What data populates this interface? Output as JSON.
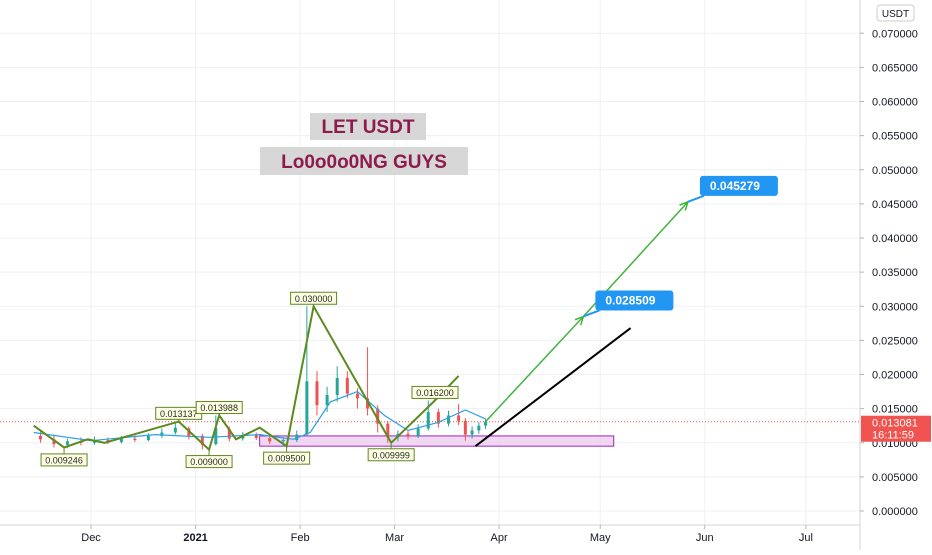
{
  "axis": {
    "symbol": "USDT",
    "y_ticks": [
      "0.070000",
      "0.065000",
      "0.060000",
      "0.055000",
      "0.050000",
      "0.045000",
      "0.040000",
      "0.035000",
      "0.030000",
      "0.025000",
      "0.020000",
      "0.015000",
      "0.010000",
      "0.005000",
      "0.000000"
    ],
    "x_ticks": [
      "Dec",
      "2021",
      "Feb",
      "Mar",
      "Apr",
      "May",
      "Jun",
      "Jul"
    ]
  },
  "price_tag": {
    "price": "0.013081",
    "countdown": "16:11:59"
  },
  "title": {
    "line1": "LET USDT",
    "line2": "Lo0o0o0NG GUYS"
  },
  "targets": [
    "0.028509",
    "0.045279"
  ],
  "colors": {
    "up": "#26a69a",
    "down": "#ef5350",
    "zigzag": "#5b8a1e",
    "ma": "#2aa0e6",
    "arrow": "#3fb53a",
    "target_bg": "#2196f3",
    "zone_fill": "#eec9f0",
    "zone_stroke": "#9c27b0",
    "price_tag": "#f05350",
    "title_text": "#8e1b4e",
    "title_bg": "#d7d7d7"
  },
  "chart_data": {
    "type": "candlestick",
    "ylim": [
      -0.0025,
      0.0735
    ],
    "x_range": [
      "2020-11-14",
      "2021-07-10"
    ],
    "pivots": [
      {
        "label": "0.009246",
        "x": "2020-11-23",
        "y": 0.009246
      },
      {
        "label": "0.013137",
        "x": "2020-12-27",
        "y": 0.013137
      },
      {
        "label": "0.009000",
        "x": "2021-01-05",
        "y": 0.009
      },
      {
        "label": "0.013988",
        "x": "2021-01-08",
        "y": 0.013988
      },
      {
        "label": "0.009500",
        "x": "2021-01-28",
        "y": 0.0095
      },
      {
        "label": "0.030000",
        "x": "2021-02-05",
        "y": 0.03
      },
      {
        "label": "0.009999",
        "x": "2021-02-28",
        "y": 0.009999
      },
      {
        "label": "0.016200",
        "x": "2021-03-13",
        "y": 0.0162
      }
    ],
    "zigzag": [
      {
        "x": "2020-11-14",
        "y": 0.0125
      },
      {
        "x": "2020-11-23",
        "y": 0.0093
      },
      {
        "x": "2020-11-30",
        "y": 0.0105
      },
      {
        "x": "2020-12-05",
        "y": 0.01
      },
      {
        "x": "2020-12-27",
        "y": 0.0131
      },
      {
        "x": "2021-01-05",
        "y": 0.009
      },
      {
        "x": "2021-01-08",
        "y": 0.014
      },
      {
        "x": "2021-01-13",
        "y": 0.0105
      },
      {
        "x": "2021-01-20",
        "y": 0.0122
      },
      {
        "x": "2021-01-28",
        "y": 0.0095
      },
      {
        "x": "2021-02-05",
        "y": 0.03
      },
      {
        "x": "2021-02-28",
        "y": 0.01
      },
      {
        "x": "2021-03-13",
        "y": 0.0162
      },
      {
        "x": "2021-03-20",
        "y": 0.0198
      }
    ],
    "ma": [
      {
        "x": "2020-11-14",
        "y": 0.0115
      },
      {
        "x": "2020-12-01",
        "y": 0.0103
      },
      {
        "x": "2020-12-20",
        "y": 0.0112
      },
      {
        "x": "2021-01-05",
        "y": 0.0108
      },
      {
        "x": "2021-01-20",
        "y": 0.0112
      },
      {
        "x": "2021-01-30",
        "y": 0.0105
      },
      {
        "x": "2021-02-04",
        "y": 0.0115
      },
      {
        "x": "2021-02-10",
        "y": 0.016
      },
      {
        "x": "2021-02-18",
        "y": 0.0175
      },
      {
        "x": "2021-02-26",
        "y": 0.014
      },
      {
        "x": "2021-03-05",
        "y": 0.0118
      },
      {
        "x": "2021-03-14",
        "y": 0.013
      },
      {
        "x": "2021-03-22",
        "y": 0.0148
      },
      {
        "x": "2021-03-28",
        "y": 0.0135
      }
    ],
    "candles": [
      {
        "x": "2020-11-16",
        "o": 0.011,
        "c": 0.0105,
        "h": 0.0118,
        "l": 0.01
      },
      {
        "x": "2020-11-20",
        "o": 0.0105,
        "c": 0.0098,
        "h": 0.0112,
        "l": 0.0093
      },
      {
        "x": "2020-11-24",
        "o": 0.0097,
        "c": 0.0102,
        "h": 0.0106,
        "l": 0.0092
      },
      {
        "x": "2020-11-28",
        "o": 0.0102,
        "c": 0.01,
        "h": 0.0108,
        "l": 0.0096
      },
      {
        "x": "2020-12-02",
        "o": 0.01,
        "c": 0.0104,
        "h": 0.0109,
        "l": 0.0097
      },
      {
        "x": "2020-12-06",
        "o": 0.0104,
        "c": 0.0101,
        "h": 0.0108,
        "l": 0.0098
      },
      {
        "x": "2020-12-10",
        "o": 0.0101,
        "c": 0.0106,
        "h": 0.011,
        "l": 0.0099
      },
      {
        "x": "2020-12-14",
        "o": 0.0106,
        "c": 0.0104,
        "h": 0.0111,
        "l": 0.0101
      },
      {
        "x": "2020-12-18",
        "o": 0.0104,
        "c": 0.011,
        "h": 0.0114,
        "l": 0.0102
      },
      {
        "x": "2020-12-22",
        "o": 0.011,
        "c": 0.0115,
        "h": 0.0121,
        "l": 0.0107
      },
      {
        "x": "2020-12-26",
        "o": 0.0115,
        "c": 0.0122,
        "h": 0.0131,
        "l": 0.0112
      },
      {
        "x": "2020-12-30",
        "o": 0.0121,
        "c": 0.011,
        "h": 0.0124,
        "l": 0.0105
      },
      {
        "x": "2021-01-03",
        "o": 0.011,
        "c": 0.0097,
        "h": 0.0113,
        "l": 0.009
      },
      {
        "x": "2021-01-07",
        "o": 0.0098,
        "c": 0.0122,
        "h": 0.014,
        "l": 0.0096
      },
      {
        "x": "2021-01-11",
        "o": 0.012,
        "c": 0.0106,
        "h": 0.0124,
        "l": 0.0102
      },
      {
        "x": "2021-01-15",
        "o": 0.0106,
        "c": 0.0111,
        "h": 0.0116,
        "l": 0.0103
      },
      {
        "x": "2021-01-19",
        "o": 0.0111,
        "c": 0.0107,
        "h": 0.0115,
        "l": 0.0104
      },
      {
        "x": "2021-01-23",
        "o": 0.0107,
        "c": 0.0102,
        "h": 0.0111,
        "l": 0.0098
      },
      {
        "x": "2021-01-27",
        "o": 0.0102,
        "c": 0.0104,
        "h": 0.0108,
        "l": 0.0095
      },
      {
        "x": "2021-01-31",
        "o": 0.0104,
        "c": 0.0112,
        "h": 0.0118,
        "l": 0.0101
      },
      {
        "x": "2021-02-03",
        "o": 0.0112,
        "c": 0.019,
        "h": 0.03,
        "l": 0.011
      },
      {
        "x": "2021-02-06",
        "o": 0.019,
        "c": 0.0155,
        "h": 0.0205,
        "l": 0.014
      },
      {
        "x": "2021-02-09",
        "o": 0.0155,
        "c": 0.017,
        "h": 0.0182,
        "l": 0.0145
      },
      {
        "x": "2021-02-12",
        "o": 0.017,
        "c": 0.0195,
        "h": 0.0212,
        "l": 0.016
      },
      {
        "x": "2021-02-15",
        "o": 0.0195,
        "c": 0.0172,
        "h": 0.0205,
        "l": 0.0165
      },
      {
        "x": "2021-02-18",
        "o": 0.0172,
        "c": 0.0165,
        "h": 0.018,
        "l": 0.015
      },
      {
        "x": "2021-02-21",
        "o": 0.0165,
        "c": 0.015,
        "h": 0.024,
        "l": 0.014
      },
      {
        "x": "2021-02-24",
        "o": 0.015,
        "c": 0.0128,
        "h": 0.0155,
        "l": 0.0115
      },
      {
        "x": "2021-02-27",
        "o": 0.0128,
        "c": 0.0108,
        "h": 0.0132,
        "l": 0.01
      },
      {
        "x": "2021-03-02",
        "o": 0.0108,
        "c": 0.0113,
        "h": 0.0118,
        "l": 0.0102
      },
      {
        "x": "2021-03-05",
        "o": 0.0113,
        "c": 0.011,
        "h": 0.0117,
        "l": 0.0105
      },
      {
        "x": "2021-03-08",
        "o": 0.011,
        "c": 0.0121,
        "h": 0.0127,
        "l": 0.0107
      },
      {
        "x": "2021-03-11",
        "o": 0.0121,
        "c": 0.0145,
        "h": 0.0162,
        "l": 0.0118
      },
      {
        "x": "2021-03-14",
        "o": 0.0145,
        "c": 0.0128,
        "h": 0.015,
        "l": 0.0122
      },
      {
        "x": "2021-03-17",
        "o": 0.0128,
        "c": 0.014,
        "h": 0.0147,
        "l": 0.0124
      },
      {
        "x": "2021-03-20",
        "o": 0.014,
        "c": 0.0132,
        "h": 0.0157,
        "l": 0.0126
      },
      {
        "x": "2021-03-22",
        "o": 0.0132,
        "c": 0.0112,
        "h": 0.0136,
        "l": 0.0103
      },
      {
        "x": "2021-03-24",
        "o": 0.0112,
        "c": 0.0118,
        "h": 0.0124,
        "l": 0.0106
      },
      {
        "x": "2021-03-26",
        "o": 0.0118,
        "c": 0.0125,
        "h": 0.013,
        "l": 0.0113
      },
      {
        "x": "2021-03-28",
        "o": 0.0125,
        "c": 0.0131,
        "h": 0.0135,
        "l": 0.012
      }
    ],
    "support_zone": {
      "x0": "2021-01-20",
      "x1": "2021-05-05",
      "y0": 0.0095,
      "y1": 0.011
    },
    "trendline": {
      "x0": "2021-03-25",
      "y0": 0.0095,
      "x1": "2021-05-10",
      "y1": 0.0268
    },
    "projection": [
      {
        "x": "2021-03-28",
        "y": 0.0131
      },
      {
        "x": "2021-04-26",
        "y": 0.0285
      },
      {
        "x": "2021-05-27",
        "y": 0.0453
      }
    ],
    "current_price": 0.013081
  }
}
